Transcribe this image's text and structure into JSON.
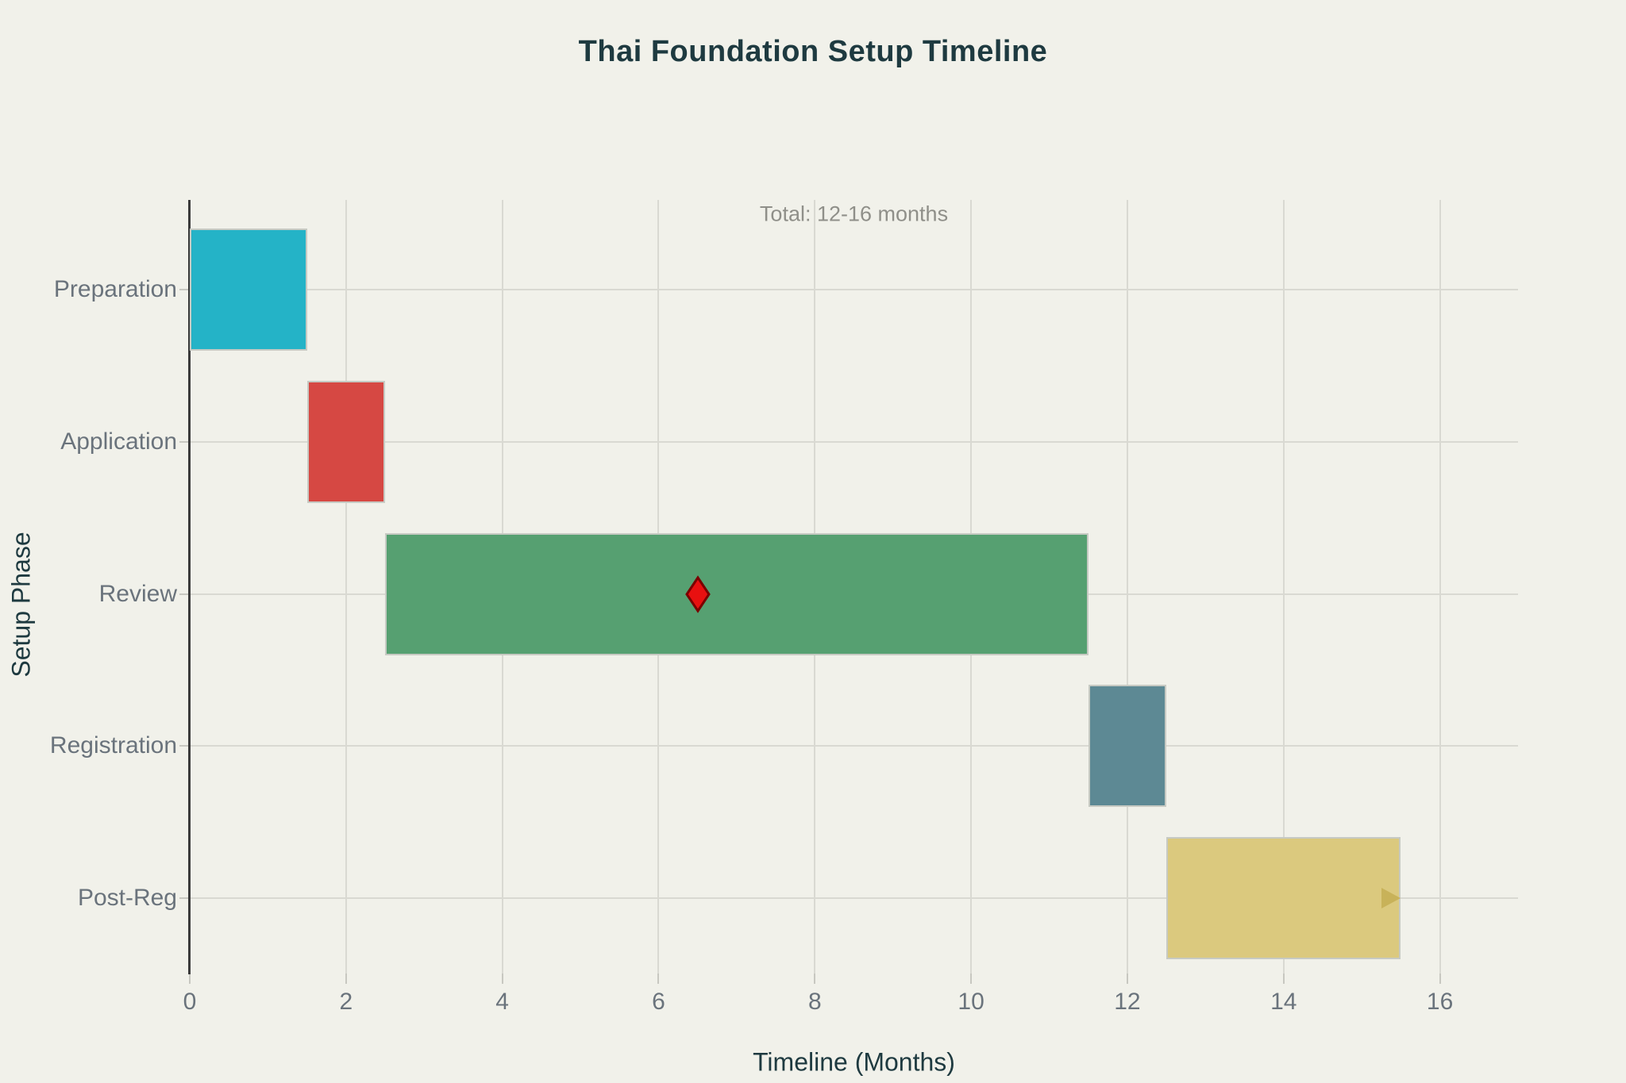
{
  "page": {
    "background": "#f1f1ea"
  },
  "chart_data": {
    "type": "bar",
    "variant": "horizontal-gantt",
    "title": "Thai Foundation Setup Timeline",
    "xlabel": "Timeline (Months)",
    "ylabel": "Setup Phase",
    "annotation": {
      "text": "Total: 12-16 months",
      "x": 8.5
    },
    "xlim": [
      0,
      17
    ],
    "xticks": [
      0,
      2,
      4,
      6,
      8,
      10,
      12,
      14,
      16
    ],
    "grid": true,
    "legend": false,
    "categories": [
      "Preparation",
      "Application",
      "Review",
      "Registration",
      "Post-Reg"
    ],
    "series": [
      {
        "name": "Preparation",
        "start": 0,
        "end": 1.5,
        "duration_months": 1.5,
        "color": "#24b3c7"
      },
      {
        "name": "Application",
        "start": 1.5,
        "end": 2.5,
        "duration_months": 1.0,
        "color": "#d64843"
      },
      {
        "name": "Review",
        "start": 2.5,
        "end": 11.5,
        "duration_months": 9.0,
        "color": "#56a071"
      },
      {
        "name": "Registration",
        "start": 11.5,
        "end": 12.5,
        "duration_months": 1.0,
        "color": "#5d8994"
      },
      {
        "name": "Post-Reg",
        "start": 12.5,
        "end": 15.5,
        "duration_months": 3.0,
        "color": "#dbc97e"
      }
    ],
    "markers": [
      {
        "shape": "thin-diamond",
        "x": 6.5,
        "category": "Review",
        "fill": "#e81010",
        "edge": "#7a0000"
      }
    ],
    "arrows": [
      {
        "category": "Post-Reg",
        "base_x": 15.25,
        "tip_x": 15.5,
        "color": "#c8b259"
      }
    ],
    "colors": {
      "background": "#f1f1ea",
      "title_text": "#1e3a40",
      "axis_label_text": "#1e3a40",
      "tick_text": "#6a737c",
      "annotation_text": "#8f8f89",
      "gridline": "#d9d9d2",
      "spine": "#3b3b3b",
      "tick_mark": "#c8c8c1",
      "bar_edge": "#c7cac3"
    }
  }
}
